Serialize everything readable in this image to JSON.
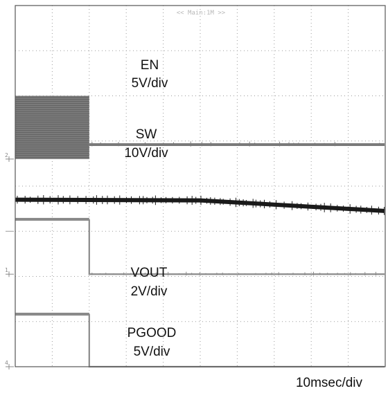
{
  "chart_data": {
    "type": "line",
    "title": "",
    "header_text": "<< Main:1M >>",
    "timebase_label": "10msec/div",
    "grid": true,
    "x_divisions": 10,
    "y_divisions": 8,
    "trigger_time_div": 2.0,
    "xlim_div": [
      0,
      10
    ],
    "channels": [
      {
        "name": "EN",
        "scale_label": "5V/div",
        "color": "#8a8a8a",
        "ground_marker": "1",
        "ground_level_div": 2.05,
        "high_level_div": 3.25,
        "low_level_div": 2.05,
        "switching": false
      },
      {
        "name": "SW",
        "scale_label": "10V/div",
        "color": "#7a7a7a",
        "ground_marker": "2",
        "ground_level_div": 4.6,
        "band_top_div": 6.0,
        "band_bottom_div": 4.6,
        "low_level_div": 4.92,
        "switching": true
      },
      {
        "name": "VOUT",
        "scale_label": "2V/div",
        "color": "#1a1a1a",
        "level_start_div": 3.7,
        "level_end_div": 3.45,
        "decay_start_time_div": 5.0
      },
      {
        "name": "PGOOD",
        "scale_label": "5V/div",
        "color": "#8a8a8a",
        "ground_marker": "4",
        "ground_level_div": 0.0,
        "high_level_div": 1.15,
        "low_level_div": 0.0,
        "switching": false
      }
    ]
  }
}
